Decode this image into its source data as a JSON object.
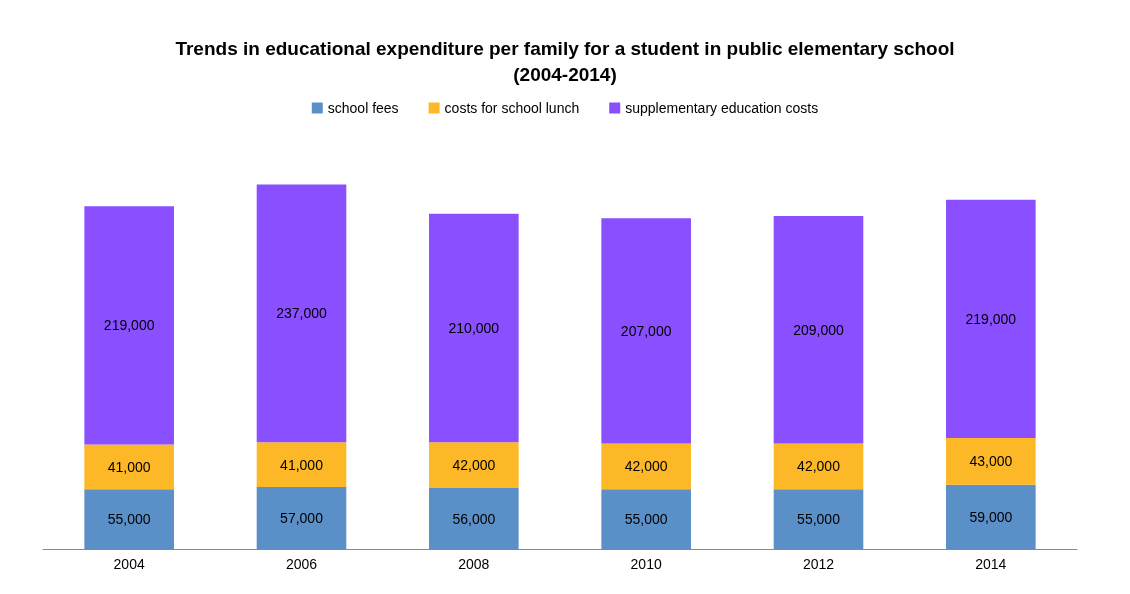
{
  "chart_data": {
    "type": "bar",
    "stacked": true,
    "title": "Trends in educational expenditure per family for a student in public elementary school\n(2004-2014)",
    "categories": [
      "2004",
      "2006",
      "2008",
      "2010",
      "2012",
      "2014"
    ],
    "legend": "top",
    "series": [
      {
        "name": "school fees",
        "color": "#5b8fc7",
        "values": [
          55000,
          57000,
          56000,
          55000,
          55000,
          59000
        ],
        "value_labels": [
          "55,000",
          "57,000",
          "56,000",
          "55,000",
          "55,000",
          "59,000"
        ]
      },
      {
        "name": "costs for school lunch",
        "color": "#fdb827",
        "values": [
          41000,
          41000,
          42000,
          42000,
          42000,
          43000
        ],
        "value_labels": [
          "41,000",
          "41,000",
          "42,000",
          "42,000",
          "42,000",
          "43,000"
        ]
      },
      {
        "name": "supplementary education costs",
        "color": "#8a4fff",
        "values": [
          219000,
          237000,
          210000,
          207000,
          209000,
          219000
        ],
        "value_labels": [
          "219,000",
          "237,000",
          "210,000",
          "207,000",
          "209,000",
          "219,000"
        ]
      }
    ]
  }
}
